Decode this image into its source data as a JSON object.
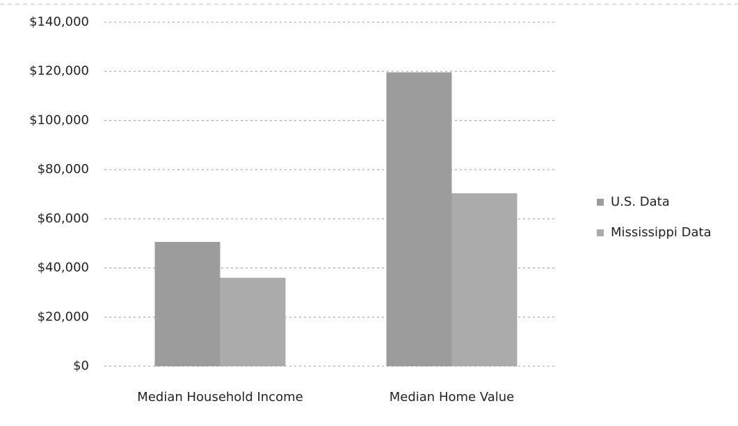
{
  "chart_data": {
    "type": "bar",
    "categories": [
      "Median Household Income",
      "Median Home Value"
    ],
    "series": [
      {
        "name": "U.S. Data",
        "color": "#9c9c9c",
        "values": [
          50600,
          119600
        ]
      },
      {
        "name": "Mississippi Data",
        "color": "#ababab",
        "values": [
          36000,
          70400
        ]
      }
    ],
    "ylim": [
      0,
      140000
    ],
    "yticks": [
      {
        "value": 0,
        "label": "$0"
      },
      {
        "value": 20000,
        "label": "$20,000"
      },
      {
        "value": 40000,
        "label": "$40,000"
      },
      {
        "value": 60000,
        "label": "$60,000"
      },
      {
        "value": 80000,
        "label": "$80,000"
      },
      {
        "value": 100000,
        "label": "$100,000"
      },
      {
        "value": 120000,
        "label": "$120,000"
      },
      {
        "value": 140000,
        "label": "$140,000"
      }
    ],
    "grid": true,
    "legend": "right"
  }
}
